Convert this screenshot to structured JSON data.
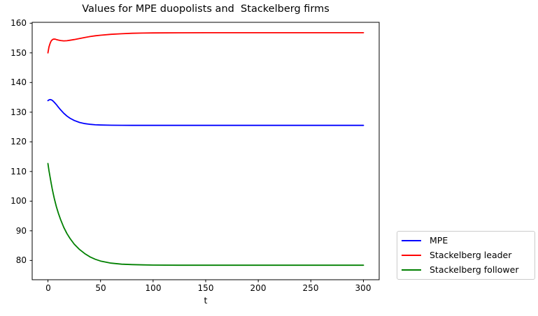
{
  "figure": {
    "background": "#ffffff",
    "axis_color": "#000000"
  },
  "chart_data": {
    "type": "line",
    "title": "Values for MPE duopolists and  Stackelberg firms",
    "xlabel": "t",
    "ylabel": "",
    "grid": false,
    "legend_position": "outside-lower-right",
    "xlim": [
      -15,
      315
    ],
    "ylim": [
      73.5,
      160.3
    ],
    "xticks": [
      0,
      50,
      100,
      150,
      200,
      250,
      300
    ],
    "yticks": [
      160,
      150,
      140,
      130,
      120,
      110,
      100,
      90,
      80
    ],
    "xtick_labels": [
      "0",
      "50",
      "100",
      "150",
      "200",
      "250",
      "300"
    ],
    "ytick_labels": [
      "160",
      "150",
      "140",
      "130",
      "120",
      "110",
      "100",
      "90",
      "80"
    ],
    "x": [
      0,
      1,
      2,
      3,
      4,
      5,
      6,
      7,
      8,
      10,
      12,
      15,
      18,
      21,
      25,
      30,
      35,
      40,
      45,
      50,
      60,
      70,
      80,
      90,
      100,
      125,
      150,
      175,
      200,
      225,
      250,
      275,
      300
    ],
    "series": [
      {
        "name": "MPE",
        "color": "#0000ff",
        "values": [
          133.9,
          134.15,
          134.25,
          134.2,
          134.0,
          133.7,
          133.35,
          132.95,
          132.55,
          131.65,
          130.8,
          129.65,
          128.7,
          127.95,
          127.2,
          126.55,
          126.15,
          125.9,
          125.75,
          125.68,
          125.6,
          125.58,
          125.55,
          125.55,
          125.55,
          125.55,
          125.55,
          125.55,
          125.55,
          125.55,
          125.55,
          125.55,
          125.55
        ]
      },
      {
        "name": "Stackelberg leader",
        "color": "#ff0000",
        "values": [
          150.0,
          152.0,
          153.2,
          154.0,
          154.4,
          154.6,
          154.65,
          154.6,
          154.5,
          154.3,
          154.15,
          154.05,
          154.1,
          154.25,
          154.5,
          154.85,
          155.2,
          155.5,
          155.75,
          155.95,
          156.25,
          156.45,
          156.6,
          156.68,
          156.73,
          156.78,
          156.8,
          156.8,
          156.8,
          156.8,
          156.8,
          156.8,
          156.8
        ]
      },
      {
        "name": "Stackelberg follower",
        "color": "#008000",
        "values": [
          112.7,
          110.3,
          108.1,
          106.1,
          104.2,
          102.5,
          100.9,
          99.5,
          98.1,
          95.8,
          93.8,
          91.2,
          89.1,
          87.4,
          85.5,
          83.7,
          82.3,
          81.2,
          80.4,
          79.8,
          79.1,
          78.75,
          78.6,
          78.5,
          78.45,
          78.4,
          78.4,
          78.4,
          78.4,
          78.4,
          78.4,
          78.4,
          78.4
        ]
      }
    ]
  }
}
